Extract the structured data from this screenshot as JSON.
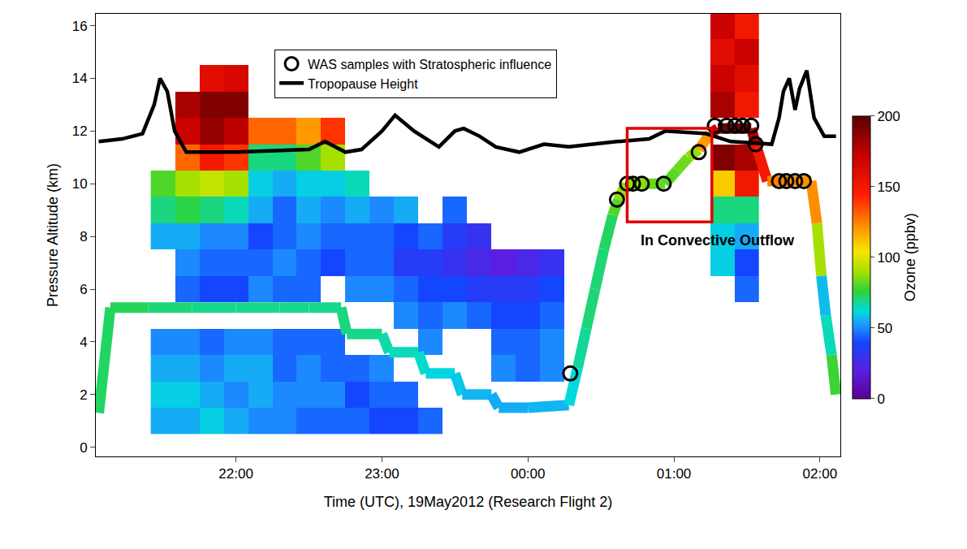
{
  "chart_data": {
    "type": "heatmap",
    "xlabel": "Time (UTC), 19May2012 (Research Flight 2)",
    "ylabel": "Pressure Altitude (km)",
    "xlim": [
      21.04,
      26.14
    ],
    "xticks": [
      {
        "value": 22,
        "label": "22:00"
      },
      {
        "value": 23,
        "label": "23:00"
      },
      {
        "value": 24,
        "label": "00:00"
      },
      {
        "value": 25,
        "label": "01:00"
      },
      {
        "value": 26,
        "label": "02:00"
      }
    ],
    "ylim": [
      -0.35,
      16.45
    ],
    "yticks": [
      0,
      2,
      4,
      6,
      8,
      10,
      12,
      14,
      16
    ],
    "legend": "top",
    "colorbar": {
      "title": "Ozone (ppbv)",
      "range": [
        0,
        200
      ],
      "ticks": [
        0,
        50,
        100,
        150,
        200
      ]
    },
    "lidar_ozone": {
      "x": [
        21.5,
        21.667,
        21.833,
        22,
        22.167,
        22.333,
        22.5,
        22.667,
        22.833,
        23,
        23.167,
        23.333,
        23.5,
        23.667,
        23.833,
        24,
        24.167,
        24.333,
        24.5,
        24.667,
        24.833,
        25,
        25.167,
        25.333,
        25.5
      ],
      "y": [
        1,
        2,
        3,
        4,
        5,
        6,
        7,
        8,
        9,
        10,
        11,
        12,
        13,
        14,
        15,
        16
      ],
      "z": [
        [
          55,
          55,
          60,
          55,
          50,
          50,
          45,
          45,
          45,
          40,
          40,
          45,
          null,
          null,
          null,
          null,
          null,
          null,
          null,
          null,
          null,
          null,
          null,
          null,
          null
        ],
        [
          60,
          60,
          55,
          50,
          55,
          50,
          50,
          50,
          40,
          45,
          45,
          null,
          null,
          null,
          null,
          null,
          null,
          null,
          null,
          null,
          null,
          null,
          null,
          null,
          null
        ],
        [
          55,
          55,
          50,
          55,
          55,
          45,
          50,
          45,
          45,
          50,
          null,
          null,
          null,
          null,
          50,
          45,
          50,
          null,
          null,
          null,
          null,
          null,
          null,
          null,
          null
        ],
        [
          50,
          50,
          45,
          50,
          50,
          45,
          45,
          45,
          null,
          null,
          null,
          50,
          null,
          null,
          45,
          45,
          50,
          null,
          null,
          null,
          null,
          null,
          null,
          null,
          null
        ],
        [
          null,
          null,
          null,
          null,
          null,
          null,
          null,
          null,
          null,
          null,
          50,
          45,
          50,
          45,
          40,
          40,
          45,
          null,
          null,
          null,
          null,
          null,
          null,
          null,
          null
        ],
        [
          null,
          45,
          40,
          40,
          50,
          45,
          45,
          null,
          50,
          50,
          45,
          40,
          40,
          35,
          35,
          35,
          40,
          null,
          null,
          null,
          null,
          null,
          null,
          null,
          45
        ],
        [
          null,
          50,
          45,
          45,
          45,
          50,
          45,
          40,
          45,
          45,
          35,
          35,
          30,
          25,
          20,
          25,
          30,
          null,
          null,
          null,
          null,
          null,
          null,
          60,
          40
        ],
        [
          55,
          55,
          50,
          50,
          40,
          45,
          50,
          45,
          45,
          45,
          40,
          45,
          35,
          30,
          null,
          null,
          null,
          null,
          null,
          null,
          null,
          null,
          null,
          60,
          55
        ],
        [
          70,
          75,
          70,
          65,
          55,
          45,
          55,
          50,
          55,
          50,
          55,
          null,
          45,
          null,
          null,
          null,
          null,
          null,
          null,
          null,
          null,
          null,
          null,
          70,
          70
        ],
        [
          80,
          90,
          95,
          90,
          60,
          55,
          60,
          60,
          65,
          null,
          null,
          null,
          null,
          null,
          null,
          null,
          null,
          null,
          null,
          null,
          null,
          null,
          null,
          110,
          150
        ],
        [
          null,
          130,
          150,
          140,
          70,
          70,
          80,
          90,
          null,
          null,
          null,
          null,
          null,
          null,
          null,
          null,
          null,
          null,
          null,
          null,
          null,
          null,
          null,
          190,
          180
        ],
        [
          null,
          170,
          185,
          175,
          130,
          130,
          120,
          140,
          null,
          null,
          null,
          null,
          null,
          null,
          null,
          null,
          null,
          null,
          null,
          null,
          null,
          null,
          null,
          null,
          null
        ],
        [
          null,
          180,
          190,
          190,
          null,
          null,
          null,
          null,
          null,
          null,
          null,
          null,
          null,
          null,
          null,
          null,
          null,
          null,
          null,
          null,
          null,
          null,
          null,
          180,
          150
        ],
        [
          null,
          null,
          160,
          165,
          null,
          null,
          null,
          null,
          null,
          null,
          null,
          null,
          null,
          null,
          null,
          null,
          null,
          null,
          null,
          null,
          null,
          null,
          null,
          170,
          160
        ],
        [
          null,
          null,
          null,
          null,
          null,
          null,
          null,
          null,
          null,
          null,
          null,
          null,
          null,
          null,
          null,
          null,
          null,
          null,
          null,
          null,
          null,
          null,
          null,
          160,
          170
        ],
        [
          null,
          null,
          null,
          null,
          null,
          null,
          null,
          null,
          null,
          null,
          null,
          null,
          null,
          null,
          null,
          null,
          null,
          null,
          null,
          null,
          null,
          null,
          null,
          170,
          150
        ]
      ]
    },
    "flight_track": {
      "x": [
        21.06,
        21.14,
        21.4,
        21.7,
        22.0,
        22.3,
        22.5,
        22.72,
        22.76,
        23.0,
        23.05,
        23.25,
        23.3,
        23.5,
        23.55,
        23.75,
        23.8,
        24.0,
        24.28,
        24.34,
        24.4,
        24.46,
        24.52,
        24.58,
        24.62,
        24.67,
        24.8,
        24.94,
        25.02,
        25.1,
        25.17,
        25.25,
        25.3,
        25.4,
        25.53,
        25.56,
        25.64,
        25.8,
        25.94,
        25.98,
        26.01,
        26.04,
        26.08,
        26.11
      ],
      "values": [
        1.3,
        5.3,
        5.3,
        5.3,
        5.3,
        5.3,
        5.3,
        5.3,
        4.3,
        4.3,
        3.6,
        3.6,
        2.8,
        2.8,
        2.0,
        2.0,
        1.5,
        1.5,
        1.6,
        3.0,
        4.5,
        6.0,
        7.5,
        8.8,
        9.4,
        10.0,
        10.0,
        10.0,
        10.5,
        11.0,
        11.3,
        11.9,
        12.1,
        12.1,
        12.1,
        11.5,
        10.1,
        10.1,
        10.1,
        8.5,
        6.5,
        5.0,
        3.5,
        2.0
      ],
      "ozone": [
        70,
        75,
        72,
        70,
        68,
        70,
        68,
        70,
        70,
        68,
        65,
        65,
        62,
        60,
        58,
        55,
        55,
        55,
        58,
        65,
        70,
        72,
        70,
        75,
        85,
        90,
        85,
        80,
        82,
        85,
        90,
        150,
        190,
        195,
        190,
        170,
        130,
        120,
        125,
        120,
        60,
        55,
        75,
        80
      ]
    },
    "series": [
      {
        "name": "Tropopause Height",
        "type": "line",
        "color": "#000000",
        "line_style": "solid",
        "x": [
          21.06,
          21.22,
          21.36,
          21.44,
          21.48,
          21.53,
          21.58,
          21.66,
          22.0,
          22.5,
          22.61,
          22.75,
          22.86,
          23.0,
          23.09,
          23.22,
          23.39,
          23.5,
          23.56,
          23.67,
          23.78,
          23.94,
          24.11,
          24.28,
          24.61,
          24.83,
          24.94,
          25.22,
          25.39,
          25.67,
          25.72,
          25.75,
          25.79,
          25.83,
          25.86,
          25.91,
          25.96,
          26.03,
          26.11
        ],
        "values": [
          11.6,
          11.7,
          11.9,
          13.0,
          14.0,
          13.5,
          12.0,
          11.2,
          11.2,
          11.3,
          11.6,
          11.2,
          11.3,
          12.0,
          12.6,
          12.0,
          11.4,
          12.0,
          12.1,
          11.8,
          11.4,
          11.2,
          11.5,
          11.4,
          11.6,
          11.7,
          12.0,
          11.9,
          11.6,
          11.5,
          12.5,
          13.5,
          14.0,
          12.8,
          13.6,
          14.3,
          12.5,
          11.8,
          11.8
        ]
      },
      {
        "name": "WAS samples with Stratospheric influence",
        "type": "scatter",
        "color": "#000000",
        "marker": "circle-open",
        "x": [
          24.29,
          24.61,
          24.68,
          24.72,
          24.78,
          24.93,
          25.17,
          25.28,
          25.36,
          25.42,
          25.47,
          25.53,
          25.56,
          25.72,
          25.77,
          25.83,
          25.89
        ],
        "values": [
          2.8,
          9.4,
          10.0,
          10.0,
          10.0,
          10.0,
          11.2,
          12.2,
          12.2,
          12.2,
          12.2,
          12.2,
          11.5,
          10.1,
          10.1,
          10.1,
          10.1
        ]
      }
    ],
    "box": {
      "x": [
        24.68,
        25.26
      ],
      "y": [
        8.55,
        12.1
      ],
      "color": "#e00000"
    },
    "annotations": [
      {
        "text": "In Convective Outflow",
        "x": 25.3,
        "y": 7.85
      }
    ]
  }
}
